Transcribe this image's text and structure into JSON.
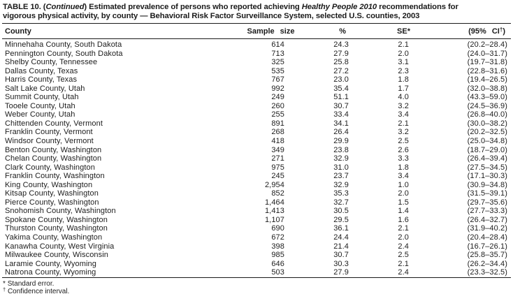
{
  "title": {
    "part1": "TABLE 10. (",
    "continued": "Continued",
    "part2": ") Estimated prevalence of persons who reported achieving ",
    "italic_term": "Healthy People 2010",
    "part3": " recommendations for",
    "line2": "vigorous physical activity, by county — Behavioral Risk Factor Surveillance System, selected U.S. counties, 2003"
  },
  "header": {
    "county": "County",
    "sample_size": "Sample size",
    "percent": "%",
    "se": "SE*",
    "ci_prefix": "(95% CI",
    "ci_sup": "†",
    "ci_suffix": ")"
  },
  "rows": [
    {
      "county": "Minnehaha County, South Dakota",
      "sample_size": "614",
      "percent": "24.3",
      "se": "2.1",
      "ci": "(20.2–28.4)"
    },
    {
      "county": "Pennington County, South Dakota",
      "sample_size": "713",
      "percent": "27.9",
      "se": "2.0",
      "ci": "(24.0–31.7)"
    },
    {
      "county": "Shelby County, Tennessee",
      "sample_size": "325",
      "percent": "25.8",
      "se": "3.1",
      "ci": "(19.7–31.8)"
    },
    {
      "county": "Dallas County, Texas",
      "sample_size": "535",
      "percent": "27.2",
      "se": "2.3",
      "ci": "(22.8–31.6)"
    },
    {
      "county": "Harris County, Texas",
      "sample_size": "767",
      "percent": "23.0",
      "se": "1.8",
      "ci": "(19.4–26.5)"
    },
    {
      "county": "Salt Lake County, Utah",
      "sample_size": "992",
      "percent": "35.4",
      "se": "1.7",
      "ci": "(32.0–38.8)"
    },
    {
      "county": "Summit County, Utah",
      "sample_size": "249",
      "percent": "51.1",
      "se": "4.0",
      "ci": "(43.3–59.0)"
    },
    {
      "county": "Tooele County, Utah",
      "sample_size": "260",
      "percent": "30.7",
      "se": "3.2",
      "ci": "(24.5–36.9)"
    },
    {
      "county": "Weber County, Utah",
      "sample_size": "255",
      "percent": "33.4",
      "se": "3.4",
      "ci": "(26.8–40.0)"
    },
    {
      "county": "Chittenden County, Vermont",
      "sample_size": "891",
      "percent": "34.1",
      "se": "2.1",
      "ci": "(30.0–38.2)"
    },
    {
      "county": "Franklin County, Vermont",
      "sample_size": "268",
      "percent": "26.4",
      "se": "3.2",
      "ci": "(20.2–32.5)"
    },
    {
      "county": "Windsor County, Vermont",
      "sample_size": "418",
      "percent": "29.9",
      "se": "2.5",
      "ci": "(25.0–34.8)"
    },
    {
      "county": "Benton County, Washington",
      "sample_size": "349",
      "percent": "23.8",
      "se": "2.6",
      "ci": "(18.7–29.0)"
    },
    {
      "county": "Chelan County, Washington",
      "sample_size": "271",
      "percent": "32.9",
      "se": "3.3",
      "ci": "(26.4–39.4)"
    },
    {
      "county": "Clark County, Washington",
      "sample_size": "975",
      "percent": "31.0",
      "se": "1.8",
      "ci": "(27.5–34.5)"
    },
    {
      "county": "Franklin County, Washington",
      "sample_size": "245",
      "percent": "23.7",
      "se": "3.4",
      "ci": "(17.1–30.3)"
    },
    {
      "county": "King County, Washington",
      "sample_size": "2,954",
      "percent": "32.9",
      "se": "1.0",
      "ci": "(30.9–34.8)"
    },
    {
      "county": "Kitsap County, Washington",
      "sample_size": "852",
      "percent": "35.3",
      "se": "2.0",
      "ci": "(31.5–39.1)"
    },
    {
      "county": "Pierce County, Washington",
      "sample_size": "1,464",
      "percent": "32.7",
      "se": "1.5",
      "ci": "(29.7–35.6)"
    },
    {
      "county": "Snohomish County, Washington",
      "sample_size": "1,413",
      "percent": "30.5",
      "se": "1.4",
      "ci": "(27.7–33.3)"
    },
    {
      "county": "Spokane County, Washington",
      "sample_size": "1,107",
      "percent": "29.5",
      "se": "1.6",
      "ci": "(26.4–32.7)"
    },
    {
      "county": "Thurston County, Washington",
      "sample_size": "690",
      "percent": "36.1",
      "se": "2.1",
      "ci": "(31.9–40.2)"
    },
    {
      "county": "Yakima County, Washington",
      "sample_size": "672",
      "percent": "24.4",
      "se": "2.0",
      "ci": "(20.4–28.4)"
    },
    {
      "county": "Kanawha County, West Virginia",
      "sample_size": "398",
      "percent": "21.4",
      "se": "2.4",
      "ci": "(16.7–26.1)"
    },
    {
      "county": "Milwaukee County, Wisconsin",
      "sample_size": "985",
      "percent": "30.7",
      "se": "2.5",
      "ci": "(25.8–35.7)"
    },
    {
      "county": "Laramie County, Wyoming",
      "sample_size": "646",
      "percent": "30.3",
      "se": "2.1",
      "ci": "(26.2–34.4)"
    },
    {
      "county": "Natrona County, Wyoming",
      "sample_size": "503",
      "percent": "27.9",
      "se": "2.4",
      "ci": "(23.3–32.5)"
    }
  ],
  "footnotes": [
    {
      "symbol": "*",
      "text": "Standard error."
    },
    {
      "symbol": "†",
      "text": "Confidence interval."
    }
  ],
  "colors": {
    "text": "#1c1c1c",
    "background": "#ffffff",
    "rule": "#1b1b1b"
  }
}
